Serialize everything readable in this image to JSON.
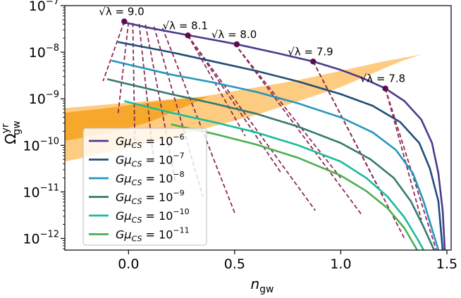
{
  "chart_data": {
    "type": "line",
    "xlabel": {
      "base": "n",
      "sub": "gw"
    },
    "ylabel": {
      "base": "Ω",
      "sup": "yr",
      "sub": "gw"
    },
    "xlim": [
      -0.3,
      1.52
    ],
    "ylim_log10": [
      -12.25,
      -7.0
    ],
    "y_scale": "log",
    "grid": false,
    "legend_placement": "lower-left",
    "x_ticks": [
      {
        "value": 0.0,
        "label": "0.0"
      },
      {
        "value": 0.5,
        "label": "0.5"
      },
      {
        "value": 1.0,
        "label": "1.0"
      },
      {
        "value": 1.5,
        "label": "1.5"
      }
    ],
    "y_ticks": [
      {
        "exp": -7,
        "base": "10",
        "sup": "−7"
      },
      {
        "exp": -8,
        "base": "10",
        "sup": "−8"
      },
      {
        "exp": -9,
        "base": "10",
        "sup": "−9"
      },
      {
        "exp": -10,
        "base": "10",
        "sup": "−10"
      },
      {
        "exp": -11,
        "base": "10",
        "sup": "−11"
      },
      {
        "exp": -12,
        "base": "10",
        "sup": "−12"
      }
    ],
    "bands": [
      {
        "name": "band-light",
        "color": "#fec36a",
        "opacity": 0.85,
        "polygon": [
          [
            -0.3,
            -9.2
          ],
          [
            0.35,
            -8.95
          ],
          [
            0.8,
            -8.6
          ],
          [
            1.2,
            -8.2
          ],
          [
            1.38,
            -8.05
          ],
          [
            1.28,
            -8.2
          ],
          [
            1.0,
            -8.75
          ],
          [
            0.6,
            -9.35
          ],
          [
            0.1,
            -9.95
          ],
          [
            -0.3,
            -10.35
          ]
        ]
      },
      {
        "name": "band-dark",
        "color": "#f39c12",
        "opacity": 0.75,
        "polygon": [
          [
            -0.3,
            -9.3
          ],
          [
            -0.1,
            -9.2
          ],
          [
            0.15,
            -9.05
          ],
          [
            0.38,
            -8.95
          ],
          [
            0.1,
            -9.5
          ],
          [
            -0.1,
            -9.75
          ],
          [
            -0.3,
            -9.9
          ]
        ]
      }
    ],
    "series": [
      {
        "name": "Gμ_CS = 10^−6",
        "legend_sup": "−6",
        "color": "#4b3a8c",
        "points": [
          [
            -0.03,
            -7.35
          ],
          [
            0.1,
            -7.48
          ],
          [
            0.3,
            -7.65
          ],
          [
            0.5,
            -7.82
          ],
          [
            0.7,
            -8.02
          ],
          [
            0.87,
            -8.2
          ],
          [
            1.0,
            -8.38
          ],
          [
            1.1,
            -8.55
          ],
          [
            1.21,
            -8.78
          ],
          [
            1.3,
            -9.05
          ],
          [
            1.38,
            -9.45
          ],
          [
            1.43,
            -9.95
          ],
          [
            1.46,
            -10.6
          ],
          [
            1.48,
            -11.4
          ],
          [
            1.49,
            -12.25
          ]
        ]
      },
      {
        "name": "Gμ_CS = 10^−7",
        "legend_sup": "−7",
        "color": "#1f4e79",
        "points": [
          [
            -0.05,
            -7.78
          ],
          [
            0.2,
            -8.0
          ],
          [
            0.4,
            -8.2
          ],
          [
            0.6,
            -8.4
          ],
          [
            0.8,
            -8.63
          ],
          [
            1.0,
            -8.9
          ],
          [
            1.15,
            -9.15
          ],
          [
            1.28,
            -9.5
          ],
          [
            1.37,
            -9.95
          ],
          [
            1.42,
            -10.5
          ],
          [
            1.46,
            -11.2
          ],
          [
            1.48,
            -12.25
          ]
        ]
      },
      {
        "name": "Gμ_CS = 10^−8",
        "legend_sup": "−8",
        "color": "#2596be",
        "points": [
          [
            -0.08,
            -8.18
          ],
          [
            0.2,
            -8.48
          ],
          [
            0.4,
            -8.65
          ],
          [
            0.6,
            -8.85
          ],
          [
            0.8,
            -9.1
          ],
          [
            1.0,
            -9.4
          ],
          [
            1.15,
            -9.72
          ],
          [
            1.26,
            -10.1
          ],
          [
            1.34,
            -10.6
          ],
          [
            1.39,
            -11.2
          ],
          [
            1.43,
            -11.8
          ],
          [
            1.46,
            -12.25
          ]
        ]
      },
      {
        "name": "Gμ_CS = 10^−9",
        "legend_sup": "−9",
        "color": "#357a6e",
        "points": [
          [
            -0.1,
            -8.58
          ],
          [
            0.2,
            -8.9
          ],
          [
            0.4,
            -9.1
          ],
          [
            0.6,
            -9.32
          ],
          [
            0.8,
            -9.6
          ],
          [
            1.0,
            -9.95
          ],
          [
            1.14,
            -10.3
          ],
          [
            1.25,
            -10.7
          ],
          [
            1.33,
            -11.2
          ],
          [
            1.39,
            -11.75
          ],
          [
            1.44,
            -12.25
          ]
        ]
      },
      {
        "name": "Gμ_CS = 10^−10",
        "legend_sup": "−10",
        "color": "#1abc9c",
        "points": [
          [
            -0.02,
            -9.05
          ],
          [
            0.2,
            -9.3
          ],
          [
            0.4,
            -9.5
          ],
          [
            0.6,
            -9.72
          ],
          [
            0.8,
            -10.0
          ],
          [
            1.0,
            -10.35
          ],
          [
            1.12,
            -10.7
          ],
          [
            1.22,
            -11.1
          ],
          [
            1.3,
            -11.55
          ],
          [
            1.36,
            -12.0
          ],
          [
            1.39,
            -12.25
          ]
        ]
      },
      {
        "name": "Gμ_CS = 10^−11",
        "legend_sup": "−11",
        "color": "#4caf50",
        "points": [
          [
            0.2,
            -9.55
          ],
          [
            0.4,
            -9.75
          ],
          [
            0.6,
            -9.98
          ],
          [
            0.8,
            -10.27
          ],
          [
            1.0,
            -10.65
          ],
          [
            1.12,
            -10.98
          ],
          [
            1.22,
            -11.35
          ],
          [
            1.3,
            -11.78
          ],
          [
            1.36,
            -12.25
          ]
        ]
      }
    ],
    "dashed_lines": {
      "color": "#8b2a55",
      "lines": [
        [
          [
            -0.02,
            -7.34
          ],
          [
            -0.12,
            -8.62
          ]
        ],
        [
          [
            0.0,
            -7.36
          ],
          [
            -0.05,
            -9.35
          ]
        ],
        [
          [
            0.02,
            -7.37
          ],
          [
            0.03,
            -10.0
          ]
        ],
        [
          [
            0.05,
            -7.39
          ],
          [
            0.12,
            -10.4
          ]
        ],
        [
          [
            0.08,
            -7.41
          ],
          [
            0.22,
            -10.75
          ]
        ],
        [
          [
            0.12,
            -7.45
          ],
          [
            0.35,
            -11.1
          ]
        ],
        [
          [
            0.16,
            -7.48
          ],
          [
            0.5,
            -11.45
          ]
        ],
        [
          [
            0.28,
            -7.64
          ],
          [
            0.55,
            -9.8
          ]
        ],
        [
          [
            0.28,
            -7.64
          ],
          [
            0.72,
            -10.6
          ]
        ],
        [
          [
            0.28,
            -7.64
          ],
          [
            0.88,
            -11.4
          ]
        ],
        [
          [
            0.5,
            -7.82
          ],
          [
            1.0,
            -10.7
          ]
        ],
        [
          [
            0.5,
            -7.82
          ],
          [
            1.1,
            -11.5
          ]
        ],
        [
          [
            0.87,
            -8.2
          ],
          [
            1.2,
            -11.1
          ]
        ],
        [
          [
            0.87,
            -8.2
          ],
          [
            1.3,
            -12.0
          ]
        ],
        [
          [
            1.21,
            -8.78
          ],
          [
            1.38,
            -11.6
          ]
        ],
        [
          [
            1.21,
            -8.78
          ],
          [
            1.45,
            -12.25
          ]
        ]
      ]
    },
    "markers": [
      {
        "x": -0.02,
        "y": -7.34,
        "label": "9.0"
      },
      {
        "x": 0.28,
        "y": -7.64,
        "label": "8.1"
      },
      {
        "x": 0.51,
        "y": -7.83,
        "label": "8.0"
      },
      {
        "x": 0.87,
        "y": -8.2,
        "label": "7.9"
      },
      {
        "x": 1.21,
        "y": -8.78,
        "label": "7.8"
      }
    ],
    "marker_color": "#5b0e4f",
    "annotation_prefix": "√λ = "
  }
}
